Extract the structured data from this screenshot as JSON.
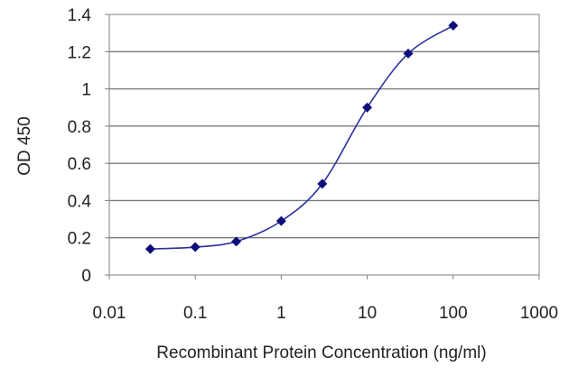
{
  "chart_data": {
    "type": "line",
    "title": "",
    "xlabel": "Recombinant Protein Concentration (ng/ml)",
    "ylabel": "OD 450",
    "x_scale": "log",
    "xlim": [
      0.01,
      1000
    ],
    "ylim": [
      0,
      1.4
    ],
    "x_ticks": [
      0.01,
      0.1,
      1,
      10,
      100,
      1000
    ],
    "x_tick_labels": [
      "0.01",
      "0.1",
      "1",
      "10",
      "100",
      "1000"
    ],
    "y_ticks": [
      0,
      0.2,
      0.4,
      0.6,
      0.8,
      1,
      1.2,
      1.4
    ],
    "y_tick_labels": [
      "0",
      "0.2",
      "0.4",
      "0.6",
      "0.8",
      "1",
      "1.2",
      "1.4"
    ],
    "grid": "horizontal",
    "legend": "none",
    "series": [
      {
        "x": [
          0.03,
          0.1,
          0.3,
          1,
          3,
          10,
          30,
          100
        ],
        "y": [
          0.14,
          0.15,
          0.18,
          0.29,
          0.49,
          0.9,
          1.19,
          1.34
        ],
        "color": "#2b2f9e",
        "marker_color": "#0a0f7a"
      }
    ]
  }
}
